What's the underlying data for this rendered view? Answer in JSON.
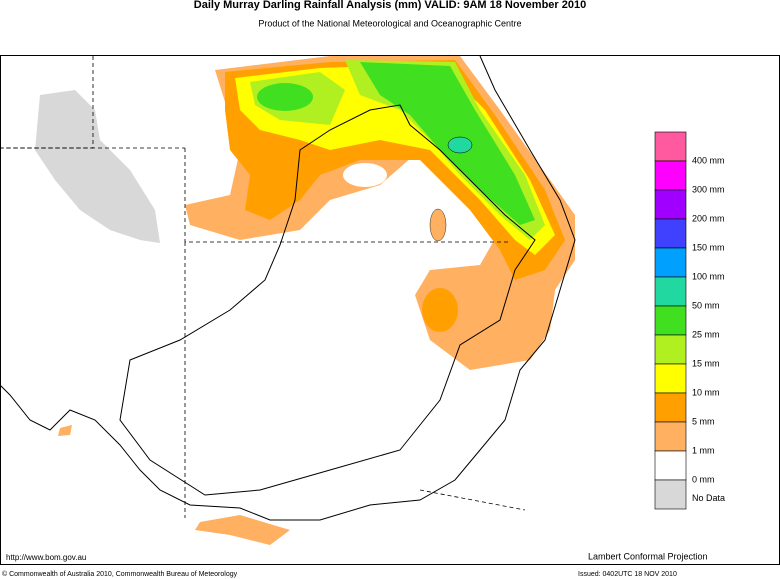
{
  "header": {
    "title": "Daily Murray Darling Rainfall Analysis (mm)  VALID: 9AM 18 November 2010",
    "subtitle": "Product of the National Meteorological and Oceanographic Centre"
  },
  "legend": {
    "swatches": [
      "#ff5aa0",
      "#ff00ff",
      "#a000ff",
      "#4040ff",
      "#00a0ff",
      "#20d8a0",
      "#40e020",
      "#b0f020",
      "#ffff00",
      "#ffa000",
      "#ffb060",
      "#ffffff",
      "#d8d8d8"
    ],
    "labels": [
      "400 mm",
      "300 mm",
      "200 mm",
      "150 mm",
      "100 mm",
      "50 mm",
      "25 mm",
      "15 mm",
      "10 mm",
      "5 mm",
      "1 mm",
      "0 mm",
      "No Data"
    ]
  },
  "footer": {
    "url": "http://www.bom.gov.au",
    "projection": "Lambert Conformal Projection",
    "copyright": "© Commonwealth of Australia 2010, Commonwealth Bureau of Meteorology",
    "issued": "Issued: 0402UTC 18 NOV 2010"
  }
}
